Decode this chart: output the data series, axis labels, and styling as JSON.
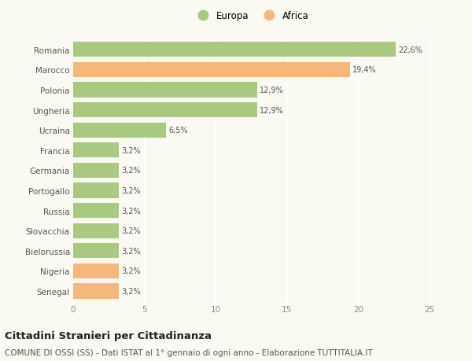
{
  "categories": [
    "Romania",
    "Marocco",
    "Polonia",
    "Ungheria",
    "Ucraina",
    "Francia",
    "Germania",
    "Portogallo",
    "Russia",
    "Slovacchia",
    "Bielorussia",
    "Nigeria",
    "Senegal"
  ],
  "values": [
    22.6,
    19.4,
    12.9,
    12.9,
    6.5,
    3.2,
    3.2,
    3.2,
    3.2,
    3.2,
    3.2,
    3.2,
    3.2
  ],
  "labels": [
    "22,6%",
    "19,4%",
    "12,9%",
    "12,9%",
    "6,5%",
    "3,2%",
    "3,2%",
    "3,2%",
    "3,2%",
    "3,2%",
    "3,2%",
    "3,2%",
    "3,2%"
  ],
  "colors": [
    "#a8c97f",
    "#f5b87a",
    "#a8c97f",
    "#a8c97f",
    "#a8c97f",
    "#a8c97f",
    "#a8c97f",
    "#a8c97f",
    "#a8c97f",
    "#a8c97f",
    "#a8c97f",
    "#f5b87a",
    "#f5b87a"
  ],
  "europa_color": "#a8c97f",
  "africa_color": "#f5b87a",
  "xlim": [
    0,
    25
  ],
  "xticks": [
    0,
    5,
    10,
    15,
    20,
    25
  ],
  "title": "Cittadini Stranieri per Cittadinanza",
  "subtitle": "COMUNE DI OSSI (SS) - Dati ISTAT al 1° gennaio di ogni anno - Elaborazione TUTTITALIA.IT",
  "background_color": "#fafaf2",
  "grid_color": "#ffffff",
  "bar_height": 0.75,
  "title_fontsize": 9.5,
  "subtitle_fontsize": 7.5,
  "label_fontsize": 7,
  "tick_fontsize": 7.5,
  "legend_fontsize": 8.5
}
